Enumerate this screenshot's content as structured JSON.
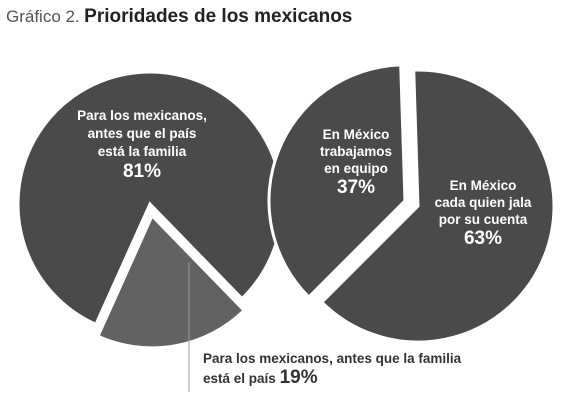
{
  "title": {
    "prefix": "Gráfico 2.",
    "main": "Prioridades de los mexicanos"
  },
  "chart_data": [
    {
      "type": "pie",
      "categories": [
        "Para los mexicanos, antes que el país está la familia",
        "Para los mexicanos, antes que la familia está el país"
      ],
      "values": [
        81,
        19
      ],
      "labels": [
        {
          "lines": [
            "Para los mexicanos,",
            "antes que el país",
            "está la familia"
          ],
          "pct": "81%"
        },
        {
          "line1": "Para los mexicanos, antes que la familia",
          "line2": "está el país",
          "pct": "19%"
        }
      ],
      "colors": [
        "#4a4a4a",
        "#626262"
      ],
      "exploded_slice": 1
    },
    {
      "type": "pie",
      "categories": [
        "En México trabajamos en equipo",
        "En México cada quien jala por su cuenta"
      ],
      "values": [
        37,
        63
      ],
      "labels": [
        {
          "lines": [
            "En México",
            "trabajamos",
            "en equipo"
          ],
          "pct": "37%"
        },
        {
          "lines": [
            "En México",
            "cada quien jala",
            "por su cuenta"
          ],
          "pct": "63%"
        }
      ],
      "colors": [
        "#4a4a4a",
        "#4a4a4a"
      ],
      "exploded_slice": 0
    }
  ]
}
